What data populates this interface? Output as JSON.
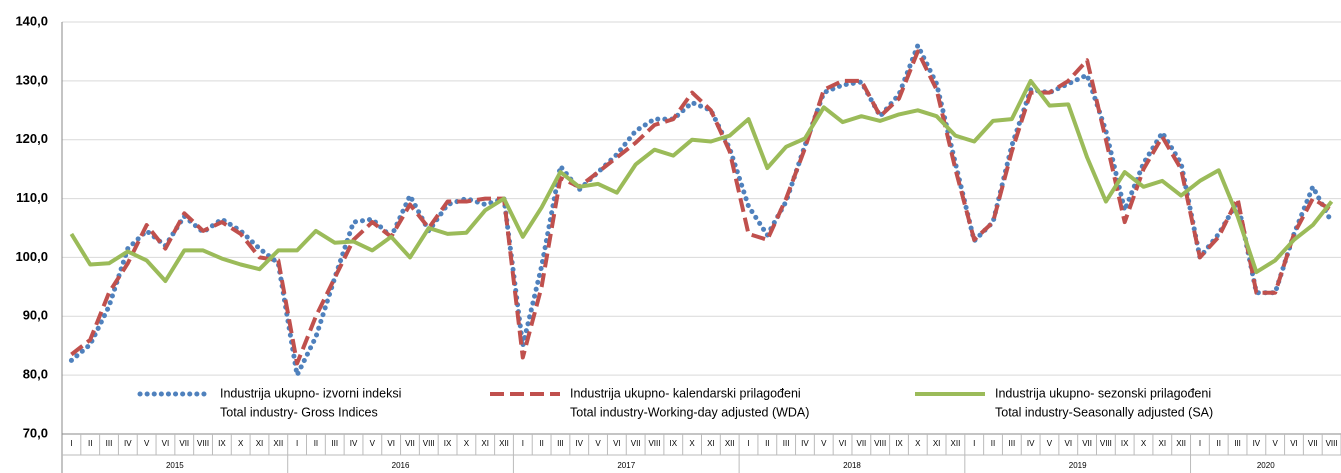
{
  "chart_data": {
    "type": "line",
    "categories": [
      "I",
      "II",
      "III",
      "IV",
      "V",
      "VI",
      "VII",
      "VIII",
      "IX",
      "X",
      "XI",
      "XII",
      "I",
      "II",
      "III",
      "IV",
      "V",
      "VI",
      "VII",
      "VIII",
      "IX",
      "X",
      "XI",
      "XII",
      "I",
      "II",
      "III",
      "IV",
      "V",
      "VI",
      "VII",
      "VIII",
      "IX",
      "X",
      "XI",
      "XII",
      "I",
      "II",
      "III",
      "IV",
      "V",
      "VI",
      "VII",
      "VIII",
      "IX",
      "X",
      "XI",
      "XII",
      "I",
      "II",
      "III",
      "IV",
      "V",
      "VI",
      "VII",
      "VIII",
      "IX",
      "X",
      "XI",
      "XII",
      "I",
      "II",
      "III",
      "IV",
      "V",
      "VI",
      "VII",
      "VIII"
    ],
    "years": [
      "2015",
      "2016",
      "2017",
      "2018",
      "2019",
      "2020"
    ],
    "series": [
      {
        "name": "Industrija ukupno- izvorni indeksi",
        "name_en": "Total industry- Gross Indices",
        "color": "#4f81bd",
        "style": "dotted",
        "values": [
          82.5,
          85.2,
          91.7,
          101.5,
          104.5,
          102,
          107,
          104.3,
          106.5,
          104.5,
          101.5,
          99,
          80,
          86.5,
          96.5,
          106,
          106.5,
          103.5,
          110.5,
          104.5,
          109,
          110,
          109,
          110,
          85,
          98.5,
          115.5,
          111.5,
          114.5,
          117.5,
          121.5,
          123.5,
          123.5,
          126.3,
          125,
          118.5,
          108.7,
          103.8,
          109.5,
          119,
          128,
          129.3,
          129.8,
          124,
          127.7,
          136,
          129.5,
          116,
          102.8,
          106,
          119,
          128.5,
          128,
          129.5,
          131,
          121.5,
          108,
          116,
          121.2,
          116,
          100,
          104,
          109.5,
          94,
          94,
          104,
          112,
          106
        ]
      },
      {
        "name": "Industrija ukupno- kalendarski prilagođeni",
        "name_en": "Total industry-Working-day adjusted (WDA)",
        "color": "#c0504d",
        "style": "dashed",
        "values": [
          83.5,
          86,
          94,
          99,
          105.5,
          101.5,
          107.5,
          104.5,
          106,
          104,
          100,
          99.5,
          82,
          90,
          96.5,
          103,
          106,
          103.5,
          109,
          105,
          109.5,
          109.5,
          110,
          110,
          83,
          95,
          113.5,
          112,
          114.5,
          117,
          119.5,
          122.5,
          123.5,
          128,
          125,
          118,
          104,
          103,
          110,
          118.5,
          128.5,
          130,
          130,
          124,
          127,
          135,
          128.5,
          115,
          103,
          106,
          118,
          128,
          128,
          130,
          133.5,
          120,
          106,
          115,
          120.5,
          115,
          100,
          103.5,
          110,
          94,
          94,
          104,
          110,
          108
        ]
      },
      {
        "name": "Industrija ukupno- sezonski prilagođeni",
        "name_en": "Total industry-Seasonally adjusted (SA)",
        "color": "#9bbb59",
        "style": "solid",
        "values": [
          104,
          98.8,
          99,
          101,
          99.5,
          96,
          101.2,
          101.2,
          99.8,
          98.8,
          98,
          101.2,
          101.2,
          104.5,
          102.5,
          102.7,
          101.2,
          103.5,
          100,
          105,
          104,
          104.2,
          108,
          110,
          103.5,
          108.5,
          114.5,
          112,
          112.5,
          111,
          115.8,
          118.3,
          117.3,
          120,
          119.7,
          120.7,
          123.5,
          115.2,
          118.8,
          120.2,
          125.5,
          123,
          124,
          123.2,
          124.3,
          125,
          124,
          120.7,
          119.7,
          123.2,
          123.5,
          130,
          125.8,
          126,
          117,
          109.5,
          114.5,
          112,
          113,
          110.5,
          113,
          114.8,
          107,
          97.5,
          99.5,
          103,
          105.5,
          109.5
        ]
      }
    ],
    "ylim": [
      70,
      140
    ],
    "yticks": [
      {
        "value": 70,
        "label": "70,0"
      },
      {
        "value": 80,
        "label": "80,0"
      },
      {
        "value": 90,
        "label": "90,0"
      },
      {
        "value": 100,
        "label": "100,0"
      },
      {
        "value": 110,
        "label": "110,0"
      },
      {
        "value": 120,
        "label": "120,0"
      },
      {
        "value": 130,
        "label": "130,0"
      },
      {
        "value": 140,
        "label": "140,0"
      }
    ],
    "grid": true
  }
}
